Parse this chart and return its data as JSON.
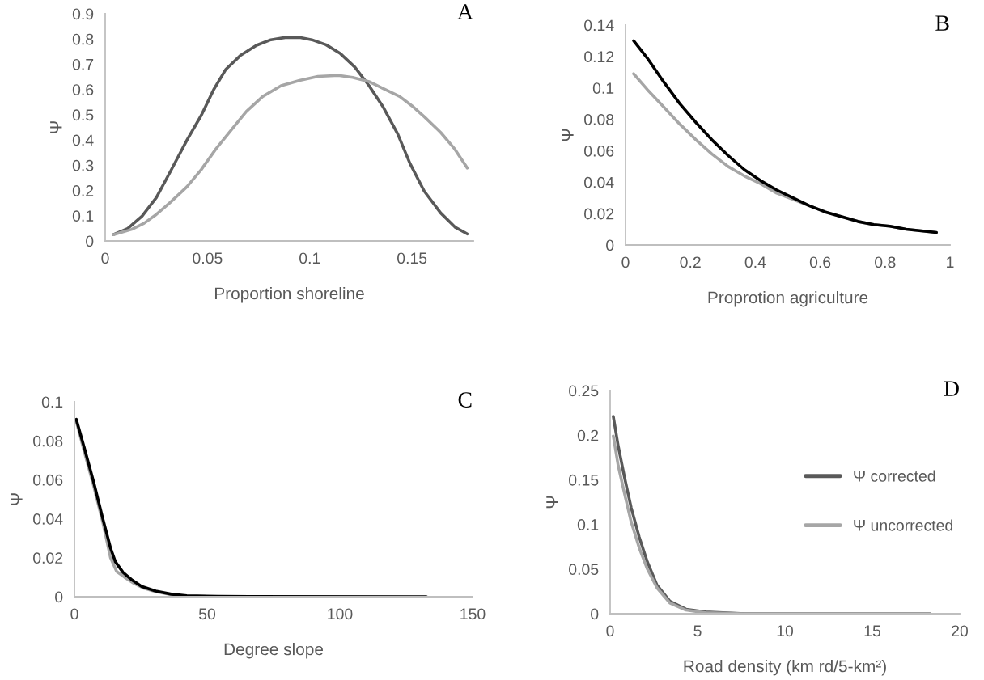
{
  "chart_data": [
    {
      "type": "line",
      "title": "A",
      "xlabel": "Proportion shoreline",
      "ylabel": "Ψ",
      "xlim": [
        0,
        0.18
      ],
      "xticks": [
        0,
        0.05,
        0.1,
        0.15
      ],
      "ylim": [
        0,
        0.9
      ],
      "yticks": [
        0,
        0.1,
        0.2,
        0.3,
        0.4,
        0.5,
        0.6,
        0.7,
        0.8,
        0.9
      ],
      "grid": false,
      "marker": "none",
      "line_style": "solid",
      "series": [
        {
          "color": "#595959",
          "x": [
            0.004,
            0.011,
            0.018,
            0.025,
            0.032,
            0.04,
            0.047,
            0.053,
            0.059,
            0.066,
            0.074,
            0.081,
            0.088,
            0.095,
            0.101,
            0.108,
            0.115,
            0.122,
            0.129,
            0.136,
            0.143,
            0.149,
            0.156,
            0.164,
            0.171,
            0.177
          ],
          "values": [
            0.025,
            0.049,
            0.098,
            0.172,
            0.277,
            0.4,
            0.498,
            0.599,
            0.68,
            0.734,
            0.775,
            0.797,
            0.806,
            0.806,
            0.797,
            0.777,
            0.742,
            0.689,
            0.615,
            0.529,
            0.424,
            0.307,
            0.197,
            0.111,
            0.055,
            0.028
          ]
        },
        {
          "color": "#a6a6a6",
          "x": [
            0.004,
            0.013,
            0.019,
            0.025,
            0.032,
            0.04,
            0.047,
            0.054,
            0.062,
            0.069,
            0.077,
            0.086,
            0.095,
            0.104,
            0.114,
            0.121,
            0.129,
            0.136,
            0.144,
            0.15,
            0.156,
            0.164,
            0.171,
            0.177
          ],
          "values": [
            0.025,
            0.046,
            0.07,
            0.105,
            0.154,
            0.215,
            0.283,
            0.363,
            0.443,
            0.513,
            0.572,
            0.615,
            0.636,
            0.652,
            0.656,
            0.648,
            0.631,
            0.603,
            0.572,
            0.535,
            0.492,
            0.43,
            0.363,
            0.289
          ]
        }
      ]
    },
    {
      "type": "line",
      "title": "B",
      "xlabel": "Proprotion agriculture",
      "ylabel": "Ψ",
      "xlim": [
        0,
        1
      ],
      "xticks": [
        0,
        0.2,
        0.4,
        0.6,
        0.8,
        1
      ],
      "ylim": [
        0,
        0.14
      ],
      "yticks": [
        0,
        0.02,
        0.04,
        0.06,
        0.08,
        0.1,
        0.12,
        0.14
      ],
      "grid": false,
      "marker": "none",
      "line_style": "solid",
      "series": [
        {
          "color": "#a6a6a6",
          "x": [
            0.025,
            0.067,
            0.117,
            0.167,
            0.217,
            0.266,
            0.316,
            0.366,
            0.416,
            0.466,
            0.516,
            0.566,
            0.616,
            0.666,
            0.716,
            0.765,
            0.815,
            0.865,
            0.958
          ],
          "values": [
            0.109,
            0.099,
            0.088,
            0.077,
            0.067,
            0.058,
            0.05,
            0.044,
            0.039,
            0.033,
            0.029,
            0.025,
            0.021,
            0.018,
            0.015,
            0.013,
            0.012,
            0.01,
            0.008
          ]
        },
        {
          "color": "#000000",
          "x": [
            0.025,
            0.067,
            0.117,
            0.167,
            0.217,
            0.266,
            0.316,
            0.366,
            0.416,
            0.466,
            0.516,
            0.566,
            0.616,
            0.666,
            0.716,
            0.765,
            0.815,
            0.865,
            0.958
          ],
          "values": [
            0.13,
            0.119,
            0.104,
            0.09,
            0.078,
            0.067,
            0.057,
            0.048,
            0.041,
            0.035,
            0.03,
            0.025,
            0.021,
            0.018,
            0.015,
            0.013,
            0.012,
            0.01,
            0.008
          ]
        }
      ]
    },
    {
      "type": "line",
      "title": "C",
      "xlabel": "Degree slope",
      "ylabel": "Ψ",
      "xlim": [
        0,
        150
      ],
      "xticks": [
        0,
        50,
        100,
        150
      ],
      "ylim": [
        0,
        0.1
      ],
      "yticks": [
        0,
        0.02,
        0.04,
        0.06,
        0.08,
        0.1
      ],
      "grid": false,
      "marker": "none",
      "line_style": "solid",
      "series": [
        {
          "color": "#a6a6a6",
          "x": [
            0.7,
            3.6,
            7.2,
            10.7,
            13.6,
            15.9,
            18.9,
            22.4,
            25.9,
            30.6,
            36.5,
            42.3
          ],
          "values": [
            0.09,
            0.075,
            0.057,
            0.038,
            0.02,
            0.013,
            0.01,
            0.0069,
            0.0045,
            0.0026,
            0.001,
            0.0002
          ]
        },
        {
          "color": "#000000",
          "x": [
            0.7,
            3.6,
            7.2,
            10.7,
            13.6,
            15.4,
            18.3,
            21.8,
            25.3,
            30.6,
            36.5,
            42.3,
            54,
            66,
            132.6
          ],
          "values": [
            0.091,
            0.077,
            0.059,
            0.04,
            0.025,
            0.018,
            0.0125,
            0.0085,
            0.0053,
            0.0029,
            0.0013,
            0.0005,
            0.0002,
            0.0001,
            0
          ]
        }
      ]
    },
    {
      "type": "line",
      "title": "D",
      "xlabel": "Road density (km rd/5-km²)",
      "ylabel": "Ψ",
      "xlim": [
        0,
        20
      ],
      "xticks": [
        0,
        5,
        10,
        15,
        20
      ],
      "ylim": [
        0,
        0.25
      ],
      "yticks": [
        0,
        0.05,
        0.1,
        0.15,
        0.2,
        0.25
      ],
      "grid": false,
      "marker": "none",
      "line_style": "solid",
      "legend": "right",
      "series": [
        {
          "name": "Ψ corrected",
          "color": "#595959",
          "x": [
            0.18,
            0.46,
            0.83,
            1.2,
            1.66,
            2.13,
            2.68,
            3.42,
            4.34,
            5.45,
            7.7,
            18.3
          ],
          "values": [
            0.221,
            0.188,
            0.152,
            0.119,
            0.086,
            0.058,
            0.032,
            0.014,
            0.005,
            0.002,
            0,
            0
          ]
        },
        {
          "name": "Ψ uncorrected",
          "color": "#a6a6a6",
          "x": [
            0.18,
            0.46,
            0.83,
            1.2,
            1.66,
            2.13,
            2.68,
            3.42,
            4.34,
            5.45,
            7.7,
            18.3
          ],
          "values": [
            0.199,
            0.166,
            0.134,
            0.103,
            0.074,
            0.05,
            0.029,
            0.012,
            0.004,
            0.001,
            0,
            0
          ]
        }
      ]
    }
  ]
}
